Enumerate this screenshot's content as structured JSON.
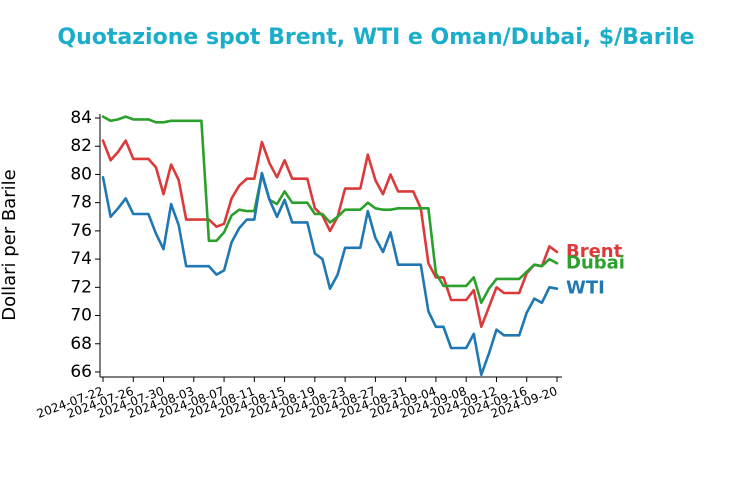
{
  "chart_data": {
    "type": "line",
    "title": "Quotazione spot Brent, WTI e Oman/Dubai, $/Barile",
    "ylabel": "Dollari per Barile",
    "x": [
      "2024-07-22",
      "2024-07-23",
      "2024-07-24",
      "2024-07-25",
      "2024-07-26",
      "2024-07-27",
      "2024-07-28",
      "2024-07-29",
      "2024-07-30",
      "2024-07-31",
      "2024-08-01",
      "2024-08-02",
      "2024-08-03",
      "2024-08-04",
      "2024-08-05",
      "2024-08-06",
      "2024-08-07",
      "2024-08-08",
      "2024-08-09",
      "2024-08-10",
      "2024-08-11",
      "2024-08-12",
      "2024-08-13",
      "2024-08-14",
      "2024-08-15",
      "2024-08-16",
      "2024-08-17",
      "2024-08-18",
      "2024-08-19",
      "2024-08-20",
      "2024-08-21",
      "2024-08-22",
      "2024-08-23",
      "2024-08-24",
      "2024-08-25",
      "2024-08-26",
      "2024-08-27",
      "2024-08-28",
      "2024-08-29",
      "2024-08-30",
      "2024-08-31",
      "2024-09-01",
      "2024-09-02",
      "2024-09-03",
      "2024-09-04",
      "2024-09-05",
      "2024-09-06",
      "2024-09-07",
      "2024-09-08",
      "2024-09-09",
      "2024-09-10",
      "2024-09-11",
      "2024-09-12",
      "2024-09-13",
      "2024-09-14",
      "2024-09-15",
      "2024-09-16",
      "2024-09-17",
      "2024-09-18",
      "2024-09-19",
      "2024-09-20"
    ],
    "series": [
      {
        "name": "Brent",
        "color": "#dc3a3a",
        "values": [
          82.4,
          81.0,
          81.6,
          82.4,
          81.1,
          81.1,
          81.1,
          80.5,
          78.6,
          80.7,
          79.6,
          76.8,
          76.8,
          76.8,
          76.8,
          76.3,
          76.5,
          78.3,
          79.2,
          79.7,
          79.7,
          82.3,
          80.8,
          79.8,
          81.0,
          79.7,
          79.7,
          79.7,
          77.6,
          77.1,
          76.0,
          77.0,
          79.0,
          79.0,
          79.0,
          81.4,
          79.6,
          78.6,
          80.0,
          78.8,
          78.8,
          78.8,
          77.6,
          73.7,
          72.7,
          72.7,
          71.1,
          71.1,
          71.1,
          71.8,
          69.2,
          70.6,
          72.0,
          71.6,
          71.6,
          71.6,
          73.0,
          73.6,
          73.5,
          74.9,
          74.5
        ]
      },
      {
        "name": "Dubai",
        "color": "#2ca02c",
        "values": [
          84.1,
          83.8,
          83.9,
          84.1,
          83.9,
          83.9,
          83.9,
          83.7,
          83.7,
          83.8,
          83.8,
          83.8,
          83.8,
          83.8,
          75.3,
          75.3,
          75.9,
          77.1,
          77.5,
          77.4,
          77.4,
          80.0,
          78.2,
          77.9,
          78.8,
          78.0,
          78.0,
          78.0,
          77.2,
          77.2,
          76.6,
          77.0,
          77.5,
          77.5,
          77.5,
          78.0,
          77.6,
          77.5,
          77.5,
          77.6,
          77.6,
          77.6,
          77.6,
          77.6,
          73.0,
          72.1,
          72.1,
          72.1,
          72.1,
          72.7,
          70.9,
          71.9,
          72.6,
          72.6,
          72.6,
          72.6,
          73.1,
          73.6,
          73.5,
          74.0,
          73.7
        ]
      },
      {
        "name": "WTI",
        "color": "#1f77b4",
        "values": [
          79.8,
          77.0,
          77.6,
          78.3,
          77.2,
          77.2,
          77.2,
          75.8,
          74.7,
          77.9,
          76.4,
          73.5,
          73.5,
          73.5,
          73.5,
          72.9,
          73.2,
          75.2,
          76.2,
          76.8,
          76.8,
          80.1,
          78.2,
          77.0,
          78.2,
          76.6,
          76.6,
          76.6,
          74.4,
          74.0,
          71.9,
          72.9,
          74.8,
          74.8,
          74.8,
          77.4,
          75.5,
          74.5,
          75.9,
          73.6,
          73.6,
          73.6,
          73.6,
          70.3,
          69.2,
          69.2,
          67.7,
          67.7,
          67.7,
          68.7,
          65.8,
          67.3,
          69.0,
          68.6,
          68.6,
          68.6,
          70.2,
          71.2,
          70.9,
          72.0,
          71.9
        ]
      }
    ],
    "xlim": [
      "2024-07-22",
      "2024-09-20"
    ],
    "xticks": [
      "2024-07-22",
      "2024-07-26",
      "2024-07-30",
      "2024-08-03",
      "2024-08-07",
      "2024-08-11",
      "2024-08-15",
      "2024-08-19",
      "2024-08-23",
      "2024-08-27",
      "2024-08-31",
      "2024-09-04",
      "2024-09-08",
      "2024-09-12",
      "2024-09-16",
      "2024-09-20"
    ],
    "ylim": [
      65.7,
      84.2
    ],
    "yticks": [
      66,
      68,
      70,
      72,
      74,
      76,
      78,
      80,
      82,
      84
    ],
    "grid": false
  }
}
